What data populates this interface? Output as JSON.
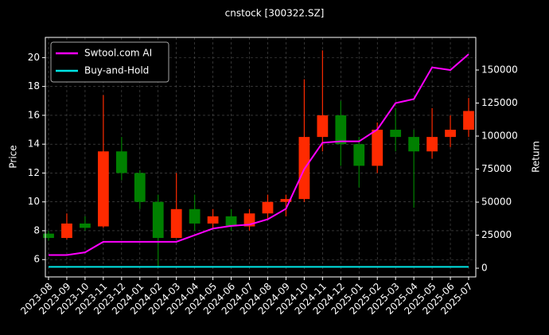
{
  "chart_data": {
    "type": "candlestick",
    "title": "cnstock [300322.SZ]",
    "ylabel": "Price",
    "y2label": "Return",
    "categories": [
      "2023-08",
      "2023-09",
      "2023-10",
      "2023-11",
      "2023-12",
      "2024-01",
      "2024-02",
      "2024-03",
      "2024-04",
      "2024-05",
      "2024-06",
      "2024-07",
      "2024-08",
      "2024-09",
      "2024-10",
      "2024-11",
      "2024-12",
      "2025-01",
      "2025-02",
      "2025-03",
      "2025-04",
      "2025-05",
      "2025-06",
      "2025-07"
    ],
    "open": [
      7.8,
      7.5,
      8.5,
      8.3,
      13.5,
      12.0,
      10.0,
      7.5,
      9.5,
      8.5,
      9.0,
      8.3,
      9.2,
      10.0,
      10.2,
      14.5,
      16.0,
      14.0,
      12.5,
      15.0,
      14.5,
      13.5,
      14.5,
      15.0
    ],
    "high": [
      8.0,
      9.2,
      9.0,
      17.4,
      14.5,
      12.2,
      10.5,
      12.0,
      10.5,
      9.5,
      9.5,
      9.5,
      10.5,
      10.5,
      18.5,
      20.5,
      17.0,
      14.5,
      15.5,
      16.5,
      15.0,
      16.5,
      16.0,
      17.2
    ],
    "low": [
      7.3,
      7.4,
      8.0,
      8.2,
      11.5,
      9.5,
      5.5,
      7.5,
      8.0,
      8.2,
      8.0,
      8.0,
      8.8,
      9.0,
      10.0,
      13.5,
      12.5,
      11.0,
      12.0,
      13.5,
      9.6,
      13.0,
      13.8,
      14.5
    ],
    "close": [
      7.5,
      8.5,
      8.2,
      13.5,
      12.0,
      10.0,
      7.5,
      9.5,
      8.5,
      9.0,
      8.3,
      9.2,
      10.0,
      10.2,
      14.5,
      16.0,
      14.0,
      12.5,
      15.0,
      14.5,
      13.5,
      14.5,
      15.0,
      16.3
    ],
    "up_color": "#ff2a00",
    "down_color": "#008000",
    "ylim": [
      4.8,
      21.4
    ],
    "yticks": [
      6,
      8,
      10,
      12,
      14,
      16,
      18,
      20
    ],
    "y2lim": [
      -6600,
      174700
    ],
    "y2ticks": [
      0,
      25000,
      50000,
      75000,
      100000,
      125000,
      150000
    ],
    "series": [
      {
        "name": "Swtool.com AI",
        "color": "#ff00ff",
        "axis": "y2",
        "values": [
          10000,
          10000,
          12000,
          20000,
          20000,
          20000,
          20000,
          20000,
          25000,
          30000,
          32000,
          33000,
          37000,
          45000,
          75000,
          95000,
          96000,
          96000,
          105000,
          125000,
          128000,
          152000,
          150000,
          162000
        ]
      },
      {
        "name": "Buy-and-Hold",
        "color": "#00e5e5",
        "axis": "y2",
        "values": [
          1000,
          1000,
          1000,
          1000,
          1000,
          1000,
          1000,
          1000,
          1000,
          1000,
          1000,
          1000,
          1000,
          1000,
          1000,
          1000,
          1000,
          1000,
          1000,
          1000,
          1000,
          1000,
          1000,
          1000
        ]
      }
    ],
    "legend": "upper left",
    "grid": true
  }
}
